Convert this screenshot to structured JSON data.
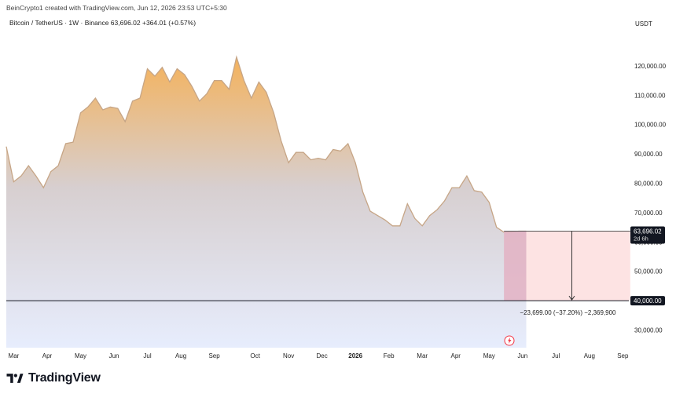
{
  "header": {
    "credit": "BeinCrypto1 created with TradingView.com, Jun 12, 2026 23:53 UTC+5:30",
    "symbol_line": "Bitcoin / TetherUS · 1W · Binance  63,696.02  +364.01 (+0.57%)",
    "currency": "USDT"
  },
  "brand": {
    "name": "TradingView",
    "logo_icon": "tradingview-logo-icon"
  },
  "chart_data": {
    "type": "area",
    "title": "Bitcoin / TetherUS · 1W · Binance",
    "unit": "USDT",
    "ylim": [
      24000,
      132000
    ],
    "y_ticks": [
      "30,000.00",
      "40,000.00",
      "50,000.00",
      "60,000.00",
      "70,000.00",
      "80,000.00",
      "90,000.00",
      "100,000.00",
      "110,000.00",
      "120,000.00"
    ],
    "y_tick_values": [
      30000,
      40000,
      50000,
      60000,
      70000,
      80000,
      90000,
      100000,
      110000,
      120000
    ],
    "x_ticks": [
      "Mar",
      "Apr",
      "May",
      "Jun",
      "Jul",
      "Aug",
      "Sep",
      "Oct",
      "Nov",
      "Dec",
      "2026",
      "Feb",
      "Mar",
      "Apr",
      "May",
      "Jun",
      "Jul",
      "Aug",
      "Sep"
    ],
    "x_tick_weeks": [
      0,
      4.5,
      9,
      13.5,
      18,
      22.5,
      27,
      32.5,
      37,
      41.5,
      46,
      50.5,
      55,
      59.5,
      64,
      68.5,
      73,
      77.5,
      82
    ],
    "x_tick_bold": [
      false,
      false,
      false,
      false,
      false,
      false,
      false,
      false,
      false,
      false,
      true,
      false,
      false,
      false,
      false,
      false,
      false,
      false,
      false
    ],
    "series": [
      {
        "x": [
          -1,
          0,
          1,
          2,
          3,
          4,
          5,
          6,
          7,
          8,
          9,
          10,
          11,
          12,
          13,
          14,
          15,
          16,
          17,
          18,
          19,
          20,
          21,
          22,
          23,
          24,
          25,
          26,
          27,
          28,
          29,
          30,
          31,
          32,
          33,
          34,
          35,
          36,
          37,
          38,
          39,
          40,
          41,
          42,
          43,
          44,
          45,
          46,
          47,
          48,
          49,
          50,
          51,
          52,
          53,
          54,
          55,
          56,
          57,
          58,
          59,
          60,
          61,
          62,
          63,
          64,
          65,
          66,
          67,
          68,
          69
        ],
        "values": [
          92500,
          80500,
          82500,
          86000,
          82500,
          78500,
          84000,
          86000,
          93500,
          94000,
          104000,
          106000,
          109000,
          105000,
          106000,
          105500,
          101000,
          108000,
          109000,
          119000,
          116500,
          119500,
          114500,
          119000,
          117000,
          113000,
          108000,
          110500,
          115000,
          115000,
          112000,
          123000,
          115000,
          109000,
          114500,
          111000,
          104000,
          94500,
          87000,
          90500,
          90500,
          88000,
          88500,
          88000,
          91500,
          91000,
          93500,
          87000,
          77000,
          70500,
          69000,
          67500,
          65500,
          65500,
          73000,
          68000,
          65500,
          69000,
          71000,
          74000,
          78500,
          78500,
          82500,
          77500,
          77000,
          73500,
          65000,
          63332,
          63400,
          63700,
          63696
        ]
      }
    ],
    "last_price": {
      "value": 63696.02,
      "label": "63,696.02",
      "countdown": "2d 6h"
    },
    "target_level": {
      "value": 40000,
      "label": "40,000.00"
    },
    "measurement": {
      "from": 63699,
      "to": 40000,
      "start_week": 66,
      "end_week": 83,
      "label": "−23,699.00 (−37.20%) −2,369,900"
    },
    "colors": {
      "area_top": "#f4b25c",
      "area_mid": "#d7cfd0",
      "area_bottom": "#e7edfd",
      "line": "#c6a586",
      "measure_past": "#e3b2c3",
      "measure_future": "#fde0e0",
      "badge_bg": "#131722",
      "lightning": "#f23645"
    }
  }
}
